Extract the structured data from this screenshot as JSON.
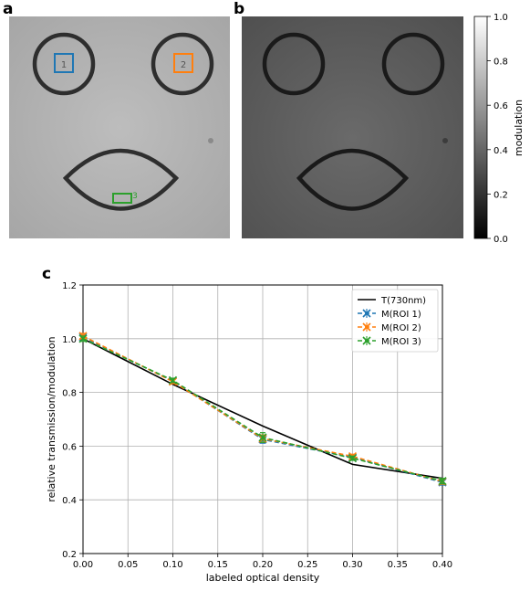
{
  "panels": [
    {
      "label": "a"
    },
    {
      "label": "b"
    },
    {
      "label": "c"
    }
  ],
  "roi_labels": [
    "1",
    "2",
    "3"
  ],
  "colorbar": {
    "label": "modulation",
    "ticks": [
      "0.0",
      "0.2",
      "0.4",
      "0.6",
      "0.8",
      "1.0"
    ],
    "range": [
      0,
      1
    ]
  },
  "colors": {
    "T": "#000000",
    "roi1": "#1f77b4",
    "roi2": "#ff7f0e",
    "roi3": "#2ca02c",
    "grid": "#b0b0b0"
  },
  "chart_data": {
    "type": "line",
    "xlabel": "labeled optical density",
    "ylabel": "relative transmission/modulation",
    "xlim": [
      0.0,
      0.4
    ],
    "ylim": [
      0.2,
      1.2
    ],
    "xticks": [
      "0.00",
      "0.05",
      "0.10",
      "0.15",
      "0.20",
      "0.25",
      "0.30",
      "0.35",
      "0.40"
    ],
    "yticks": [
      "0.2",
      "0.4",
      "0.6",
      "0.8",
      "1.0",
      "1.2"
    ],
    "grid": true,
    "legend_position": "top-right",
    "series": [
      {
        "name": "T(730nm)",
        "x": [
          0.0,
          0.1,
          0.2,
          0.3,
          0.4
        ],
        "y": [
          1.0,
          0.83,
          0.675,
          0.532,
          0.48
        ],
        "err": null
      },
      {
        "name": "M(ROI 1)",
        "x": [
          0.0,
          0.1,
          0.2,
          0.3,
          0.4
        ],
        "y": [
          1.005,
          0.842,
          0.625,
          0.558,
          0.465
        ],
        "err": [
          0.01,
          0.008,
          0.014,
          0.008,
          0.01
        ]
      },
      {
        "name": "M(ROI 2)",
        "x": [
          0.0,
          0.1,
          0.2,
          0.3,
          0.4
        ],
        "y": [
          1.01,
          0.84,
          0.628,
          0.562,
          0.468
        ],
        "err": [
          0.01,
          0.008,
          0.014,
          0.008,
          0.01
        ]
      },
      {
        "name": "M(ROI 3)",
        "x": [
          0.0,
          0.1,
          0.2,
          0.3,
          0.4
        ],
        "y": [
          1.0,
          0.845,
          0.632,
          0.555,
          0.47
        ],
        "err": [
          0.01,
          0.008,
          0.018,
          0.008,
          0.01
        ]
      }
    ]
  }
}
